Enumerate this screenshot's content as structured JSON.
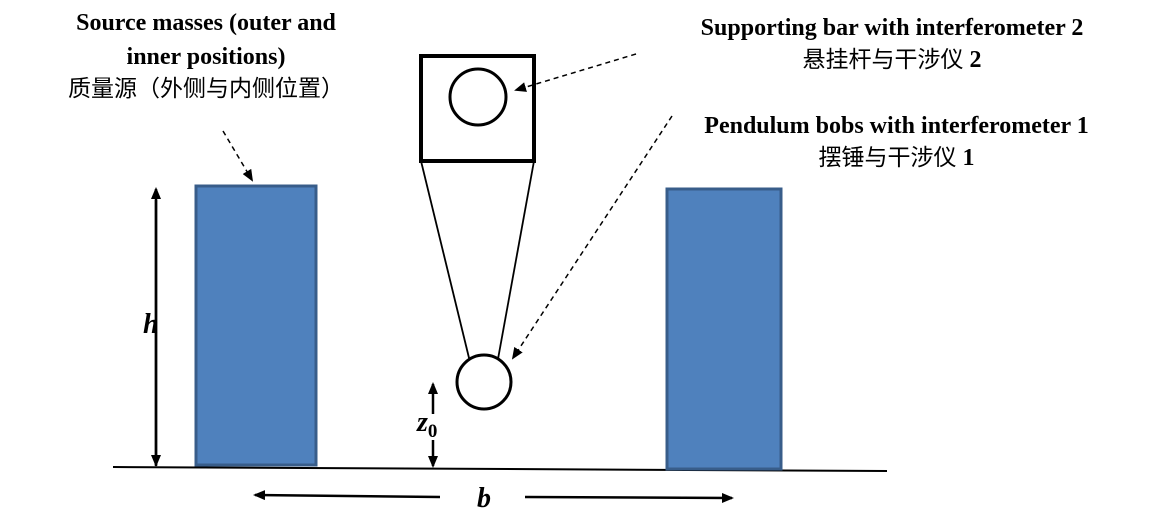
{
  "labels": {
    "source_masses_en_1": "Source masses (outer and",
    "source_masses_en_2": "inner positions)",
    "source_masses_cn": "质量源（外侧与内侧位置）",
    "bar_en": "Supporting bar with interferometer 2",
    "bar_cn_text": "悬挂杆与干涉仪",
    "bar_cn_num": "2",
    "bobs_en": "Pendulum bobs with interferometer 1",
    "bobs_cn_text": "摆锤与干涉仪",
    "bobs_cn_num": "1"
  },
  "dimensions": {
    "h": "h",
    "z": "z",
    "z_sub": "0",
    "b": "b"
  },
  "colors": {
    "mass_fill": "#4f81bd",
    "mass_stroke": "#385d8a",
    "line": "#000000"
  }
}
